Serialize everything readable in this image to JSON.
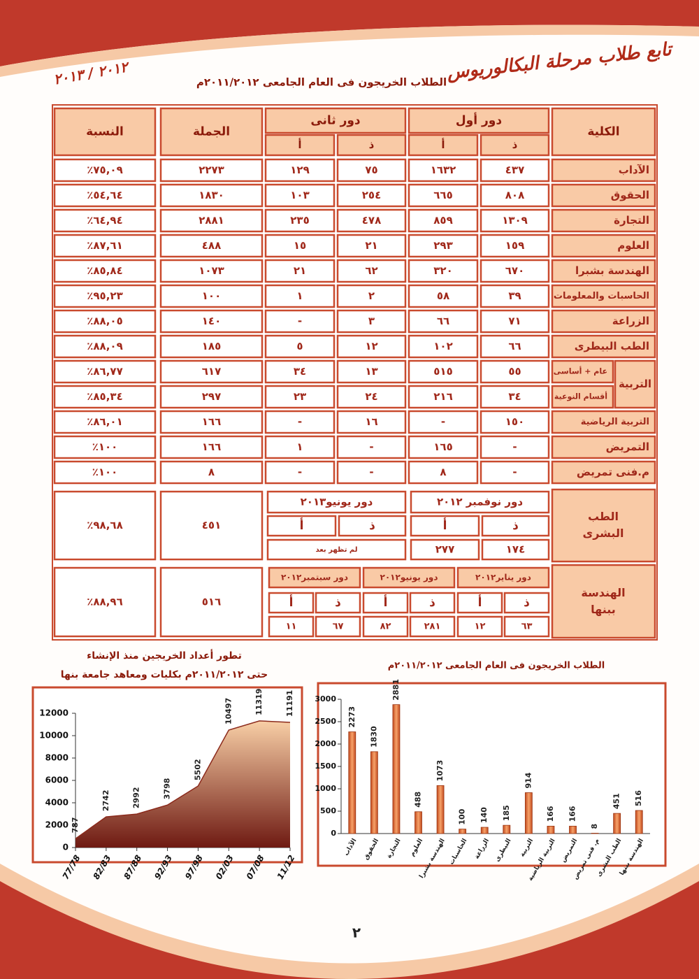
{
  "header": {
    "title": "تابع طلاب مرحلة البكالوريوس",
    "year": "٢٠١٢ / ٢٠١٣"
  },
  "table": {
    "title": "الطلاب الخريجون فى العام الجامعى ٢٠١١/٢٠١٢م",
    "headers": {
      "faculty": "الكلية",
      "first_round": "دور أول",
      "second_round": "دور ثانى",
      "total": "الجملة",
      "percent": "النسبة",
      "male": "ذ",
      "female": "أ"
    },
    "rows": [
      {
        "faculty": "الآداب",
        "values": [
          "٤٣٧",
          "١٦٣٢",
          "٧٥",
          "١٢٩"
        ],
        "total": "٢٢٧٣",
        "percent": "٪٧٥,٠٩"
      },
      {
        "faculty": "الحقوق",
        "values": [
          "٨٠٨",
          "٦٦٥",
          "٢٥٤",
          "١٠٣"
        ],
        "total": "١٨٣٠",
        "percent": "٪٥٤,٦٤"
      },
      {
        "faculty": "التجارة",
        "values": [
          "١٣٠٩",
          "٨٥٩",
          "٤٧٨",
          "٢٣٥"
        ],
        "total": "٢٨٨١",
        "percent": "٪٦٤,٩٤"
      },
      {
        "faculty": "العلوم",
        "values": [
          "١٥٩",
          "٢٩٣",
          "٢١",
          "١٥"
        ],
        "total": "٤٨٨",
        "percent": "٪٨٧,٦١"
      },
      {
        "faculty": "الهندسة بشبرا",
        "values": [
          "٦٧٠",
          "٣٢٠",
          "٦٢",
          "٢١"
        ],
        "total": "١٠٧٣",
        "percent": "٪٨٥,٨٤"
      },
      {
        "faculty": "الحاسبات والمعلومات",
        "values": [
          "٣٩",
          "٥٨",
          "٢",
          "١"
        ],
        "total": "١٠٠",
        "percent": "٪٩٥,٢٣"
      },
      {
        "faculty": "الزراعة",
        "values": [
          "٧١",
          "٦٦",
          "٣",
          "-"
        ],
        "total": "١٤٠",
        "percent": "٪٨٨,٠٥"
      },
      {
        "faculty": "الطب البيطرى",
        "values": [
          "٦٦",
          "١٠٢",
          "١٢",
          "٥"
        ],
        "total": "١٨٥",
        "percent": "٪٨٨,٠٩"
      },
      {
        "faculty": "التربية",
        "subrows": [
          {
            "faculty": "عام + أساسى",
            "values": [
              "٥٥",
              "٥١٥",
              "١٣",
              "٣٤"
            ],
            "total": "٦١٧",
            "percent": "٪٨٦,٧٧"
          },
          {
            "faculty": "أقسام النوعية",
            "values": [
              "٣٤",
              "٢١٦",
              "٢٤",
              "٢٣"
            ],
            "total": "٢٩٧",
            "percent": "٪٨٥,٣٤"
          }
        ]
      },
      {
        "faculty": "التربية الرياضية",
        "values": [
          "١٥٠",
          "-",
          "١٦",
          "-"
        ],
        "total": "١٦٦",
        "percent": "٪٨٦,٠١"
      },
      {
        "faculty": "التمريض",
        "values": [
          "-",
          "١٦٥",
          "-",
          "١"
        ],
        "total": "١٦٦",
        "percent": "٪١٠٠"
      },
      {
        "faculty": "م.فنى تمريض",
        "values": [
          "-",
          "٨",
          "-",
          "-"
        ],
        "total": "٨",
        "percent": "٪١٠٠"
      }
    ],
    "medicine": {
      "faculty": "الطب البشرى",
      "sessions": [
        {
          "name": "دور نوفمبر ٢٠١٢",
          "male": "١٧٤",
          "female": "٢٧٧"
        },
        {
          "name": "دور يونيو٢٠١٣",
          "note": "لم تظهر بعد"
        }
      ],
      "total": "٤٥١",
      "percent": "٪٩٨,٦٨"
    },
    "engineering": {
      "faculty": "الهندسة ببنها",
      "sessions": [
        {
          "name": "دور يناير٢٠١٢",
          "male": "٦٣",
          "female": "١٢"
        },
        {
          "name": "دور يونيو٢٠١٢",
          "male": "٢٨١",
          "female": "٨٢"
        },
        {
          "name": "دور سبتمبر٢٠١٢",
          "male": "٦٧",
          "female": "١١"
        }
      ],
      "total": "٥١٦",
      "percent": "٪٨٨,٩٦"
    }
  },
  "chart_data": [
    {
      "type": "area",
      "title": "تطور أعداد الخريجين منذ الإنشاء",
      "subtitle": "حتى ٢٠١١/٢٠١٢م بكليات ومعاهد جامعة بنها",
      "categories": [
        "77/78",
        "82/83",
        "87/88",
        "92/93",
        "97/98",
        "02/03",
        "07/08",
        "11/12"
      ],
      "values": [
        787,
        2742,
        2992,
        3798,
        5502,
        10497,
        11319,
        11191
      ],
      "ylim": [
        0,
        12000
      ],
      "yticks": [
        0,
        2000,
        4000,
        6000,
        8000,
        10000,
        12000
      ],
      "color": "#8b2a1c"
    },
    {
      "type": "bar",
      "title": "الطلاب الخريجون فى العام الجامعى ٢٠١١/٢٠١٢م",
      "categories": [
        "الآداب",
        "الحقوق",
        "التجارة",
        "العلوم",
        "الهندسة بشبرا",
        "الحاسبات",
        "الزراعة",
        "البيطرى",
        "التربية",
        "التربية الرياضية",
        "التمريض",
        "م. فنى تمريض",
        "الطب البشرى",
        "الهندسة ببنها"
      ],
      "values": [
        2273,
        1830,
        2881,
        488,
        1073,
        100,
        140,
        185,
        914,
        166,
        166,
        8,
        451,
        516
      ],
      "ylim": [
        0,
        3000
      ],
      "yticks": [
        0,
        500,
        1000,
        1500,
        2000,
        2500,
        3000
      ],
      "color": "#e8703a"
    }
  ],
  "page_number": "٢"
}
